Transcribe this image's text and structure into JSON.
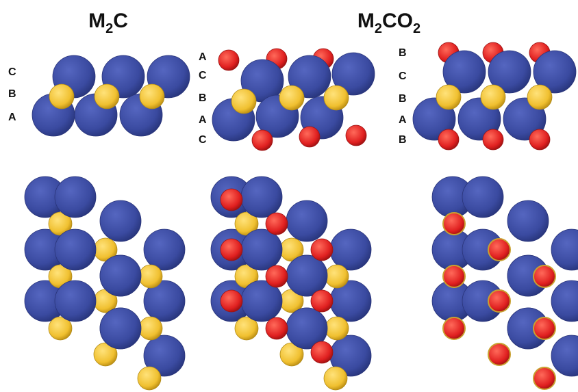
{
  "titles": {
    "left": {
      "main": "M",
      "sub": "2",
      "tail": "C"
    },
    "right": {
      "main": "M",
      "sub": "2",
      "mid": "CO",
      "sub2": "2"
    }
  },
  "stacking_labels": {
    "m2c": [
      "C",
      "B",
      "A"
    ],
    "m2co2_a": [
      "A",
      "C",
      "B",
      "A",
      "C"
    ],
    "m2co2_b": [
      "B",
      "C",
      "B",
      "A",
      "B"
    ]
  },
  "colors": {
    "metal": "#3a4aa0",
    "carbon": "#f0c030",
    "oxygen": "#e02020",
    "background": "#ffffff"
  }
}
